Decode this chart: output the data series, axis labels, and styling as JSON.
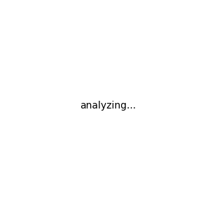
{
  "background_color": "#ebebeb",
  "bond_color": "#000000",
  "n_color": "#0000ff",
  "o_color": "#ff0000",
  "font_size": 7,
  "lw": 1.2
}
